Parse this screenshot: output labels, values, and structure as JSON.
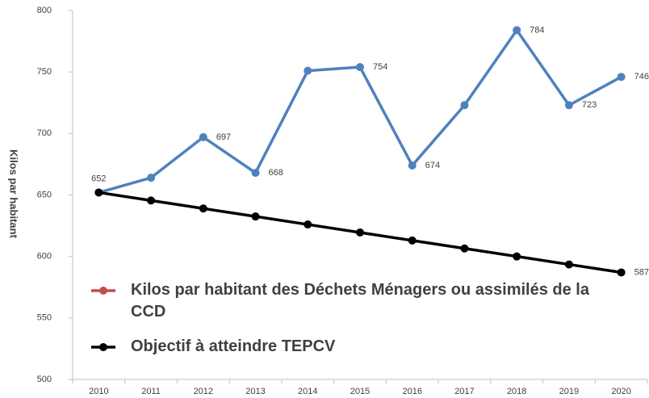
{
  "chart_data": {
    "type": "line",
    "y_label": "Kilos par habitant",
    "categories": [
      "2010",
      "2011",
      "2012",
      "2013",
      "2014",
      "2015",
      "2016",
      "2017",
      "2018",
      "2019",
      "2020"
    ],
    "series": [
      {
        "name": "Kilos par habitant des Déchets Ménagers ou assimilés de la CCD",
        "color": "#4f81bd",
        "legend_color": "#c0504d",
        "values": [
          652,
          664,
          697,
          668,
          751,
          754,
          674,
          723,
          784,
          723,
          746
        ],
        "value_labels": [
          "652",
          null,
          "697",
          "668",
          null,
          "754",
          "674",
          null,
          "784",
          "723",
          "746"
        ]
      },
      {
        "name": "Objectif à atteindre TEPCV",
        "color": "#000000",
        "legend_color": "#000000",
        "values": [
          652,
          645.5,
          639,
          632.5,
          626,
          619.5,
          613,
          606.5,
          600,
          593.5,
          587
        ],
        "value_labels": [
          null,
          null,
          null,
          null,
          null,
          null,
          null,
          null,
          null,
          null,
          "587"
        ]
      }
    ],
    "ylim": [
      500,
      800
    ],
    "yticks": [
      500,
      550,
      600,
      650,
      700,
      750,
      800
    ],
    "grid": false
  }
}
